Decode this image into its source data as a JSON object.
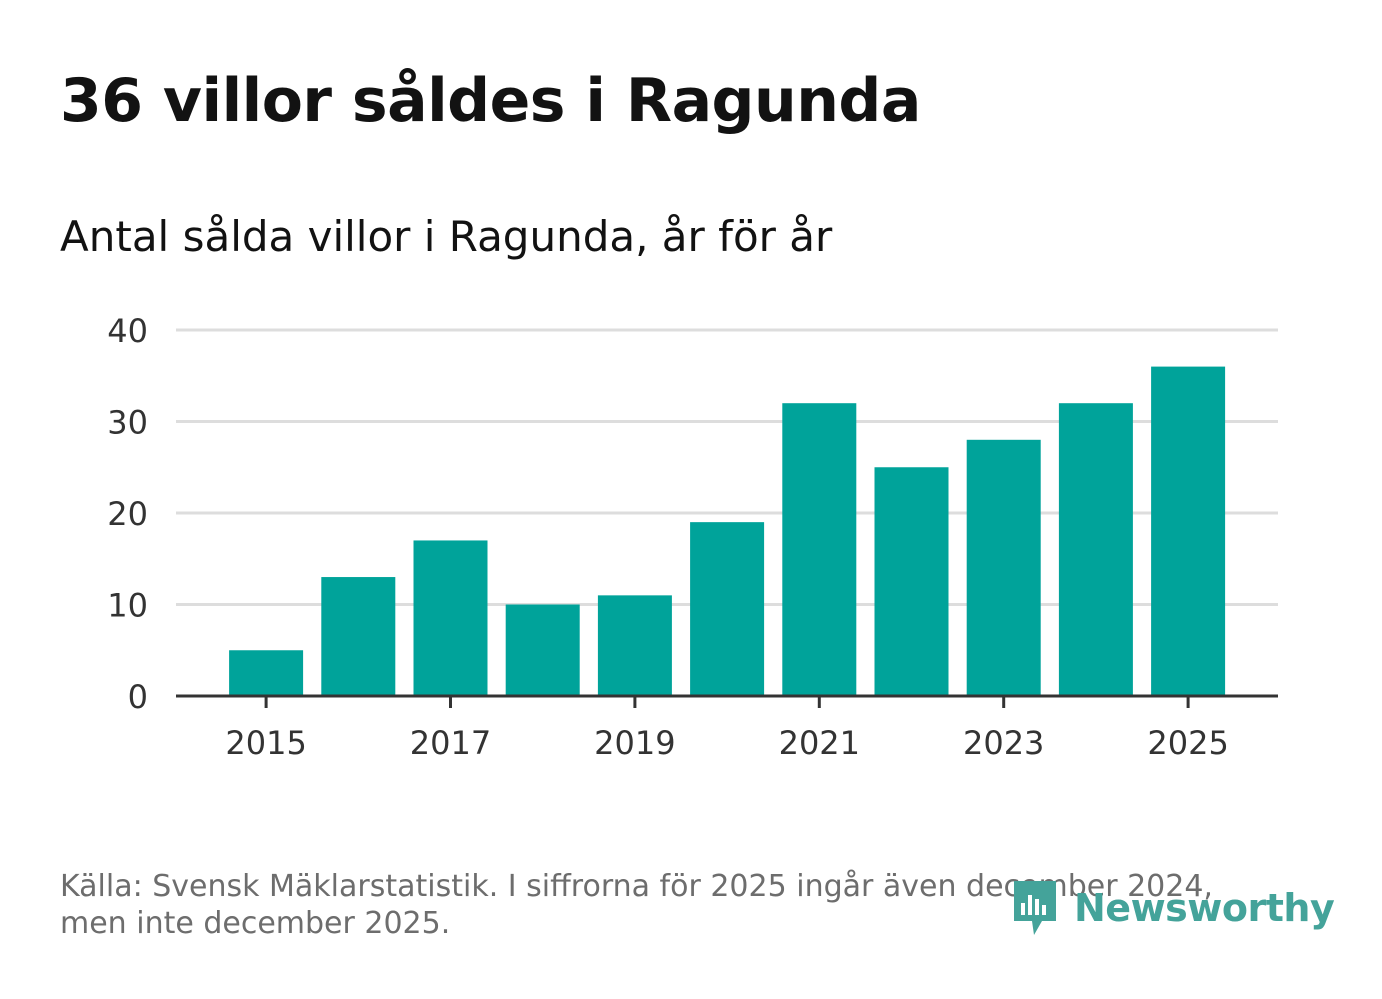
{
  "title": "36 villor såldes i Ragunda",
  "subtitle": "Antal sålda villor i Ragunda, år för år",
  "footer": {
    "line1": "Källa: Svensk Mäklarstatistik. I siffrorna för 2025 ingår även december 2024,",
    "line2": "men inte december 2025."
  },
  "brand": {
    "name": "Newsworthy",
    "icon": "newsworthy-logo-icon",
    "color": "#44a39a"
  },
  "colors": {
    "bar": "#00a39a",
    "grid": "#dddddd",
    "axis": "#333333",
    "tick_text": "#333333"
  },
  "chart_data": {
    "type": "bar",
    "title": "Antal sålda villor i Ragunda, år för år",
    "categories": [
      "2015",
      "2016",
      "2017",
      "2018",
      "2019",
      "2020",
      "2021",
      "2022",
      "2023",
      "2024",
      "2025"
    ],
    "values": [
      5,
      13,
      17,
      10,
      11,
      19,
      32,
      25,
      28,
      32,
      36
    ],
    "x_tick_labels": [
      "2015",
      "2017",
      "2019",
      "2021",
      "2023",
      "2025"
    ],
    "y_ticks": [
      0,
      10,
      20,
      30,
      40
    ],
    "ylim": [
      0,
      40
    ],
    "xlabel": "",
    "ylabel": "",
    "grid": true
  }
}
